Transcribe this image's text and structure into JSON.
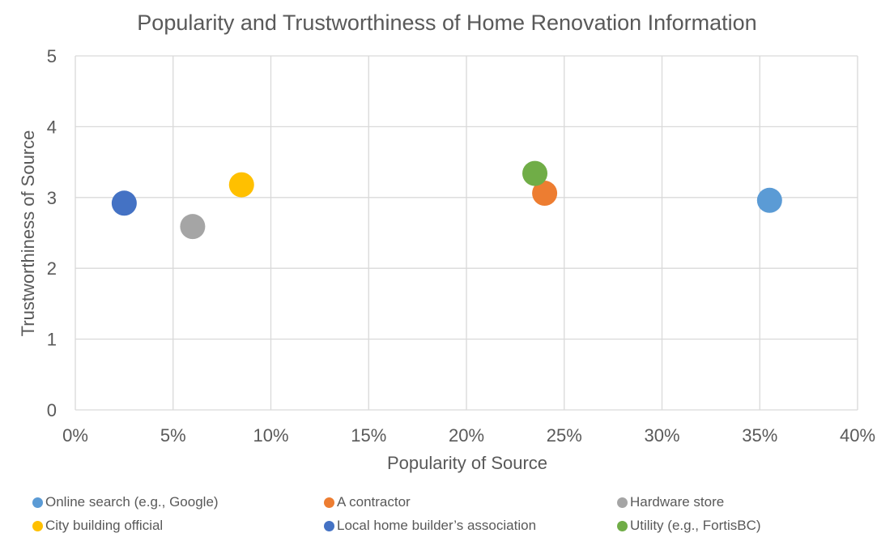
{
  "chart_data": {
    "type": "scatter",
    "title": "Popularity and Trustworthiness of Home Renovation Information",
    "xlabel": "Popularity of Source",
    "ylabel": "Trustworthiness of Source",
    "xlim": [
      0,
      0.4
    ],
    "ylim": [
      0,
      5
    ],
    "x_ticks": [
      "0%",
      "5%",
      "10%",
      "15%",
      "20%",
      "25%",
      "30%",
      "35%",
      "40%"
    ],
    "y_ticks": [
      "0",
      "1",
      "2",
      "3",
      "4",
      "5"
    ],
    "grid": true,
    "legend_position": "bottom",
    "series": [
      {
        "name": "Online search (e.g., Google)",
        "x": 0.355,
        "y": 2.96,
        "color": "#5b9bd5"
      },
      {
        "name": "A contractor",
        "x": 0.24,
        "y": 3.06,
        "color": "#ed7d31"
      },
      {
        "name": "Hardware store",
        "x": 0.06,
        "y": 2.59,
        "color": "#a5a5a5"
      },
      {
        "name": "City building official",
        "x": 0.085,
        "y": 3.18,
        "color": "#ffc000"
      },
      {
        "name": "Local home builder’s association",
        "x": 0.025,
        "y": 2.92,
        "color": "#4472c4"
      },
      {
        "name": "Utility (e.g., FortisBC)",
        "x": 0.235,
        "y": 3.34,
        "color": "#70ad47"
      }
    ]
  }
}
